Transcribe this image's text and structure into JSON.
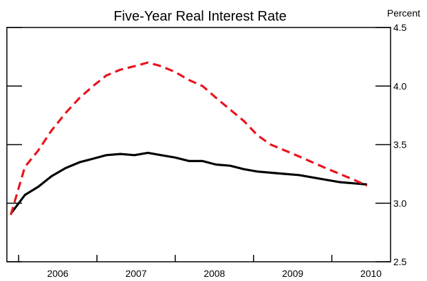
{
  "chart_data": {
    "type": "line",
    "title": "Five-Year Real Interest Rate",
    "ylabel": "",
    "y_unit": "Percent",
    "ylim": [
      2.5,
      4.5
    ],
    "y_ticks": [
      "2.5",
      "3.0",
      "3.5",
      "4.0",
      "4.5"
    ],
    "xlim": [
      2005.85,
      2010.75
    ],
    "x_ticks": [
      "2006",
      "2007",
      "2008",
      "2009",
      "2010"
    ],
    "legend": "none",
    "grid": false,
    "series": [
      {
        "style": "solid",
        "color": "#000000",
        "x": [
          2005.9,
          2006.08,
          2006.25,
          2006.42,
          2006.6,
          2006.78,
          2006.95,
          2007.12,
          2007.3,
          2007.48,
          2007.65,
          2007.82,
          2008.0,
          2008.18,
          2008.35,
          2008.52,
          2008.7,
          2008.88,
          2009.05,
          2009.22,
          2009.4,
          2009.58,
          2009.75,
          2009.92,
          2010.1,
          2010.28,
          2010.45
        ],
        "values": [
          2.91,
          3.07,
          3.14,
          3.23,
          3.3,
          3.35,
          3.38,
          3.41,
          3.42,
          3.41,
          3.43,
          3.41,
          3.39,
          3.36,
          3.36,
          3.33,
          3.32,
          3.29,
          3.27,
          3.26,
          3.25,
          3.24,
          3.22,
          3.2,
          3.18,
          3.17,
          3.16
        ]
      },
      {
        "style": "dashed",
        "color": "#e8141e",
        "x": [
          2005.9,
          2006.08,
          2006.25,
          2006.42,
          2006.6,
          2006.78,
          2006.95,
          2007.12,
          2007.3,
          2007.48,
          2007.65,
          2007.82,
          2008.0,
          2008.18,
          2008.35,
          2008.52,
          2008.7,
          2008.88,
          2009.05,
          2009.22,
          2009.4,
          2009.58,
          2009.75,
          2009.92,
          2010.1,
          2010.28,
          2010.45
        ],
        "values": [
          2.9,
          3.31,
          3.45,
          3.62,
          3.77,
          3.9,
          4.0,
          4.09,
          4.14,
          4.17,
          4.2,
          4.17,
          4.12,
          4.05,
          4.0,
          3.9,
          3.8,
          3.7,
          3.58,
          3.5,
          3.45,
          3.4,
          3.35,
          3.3,
          3.25,
          3.2,
          3.15
        ]
      }
    ]
  }
}
